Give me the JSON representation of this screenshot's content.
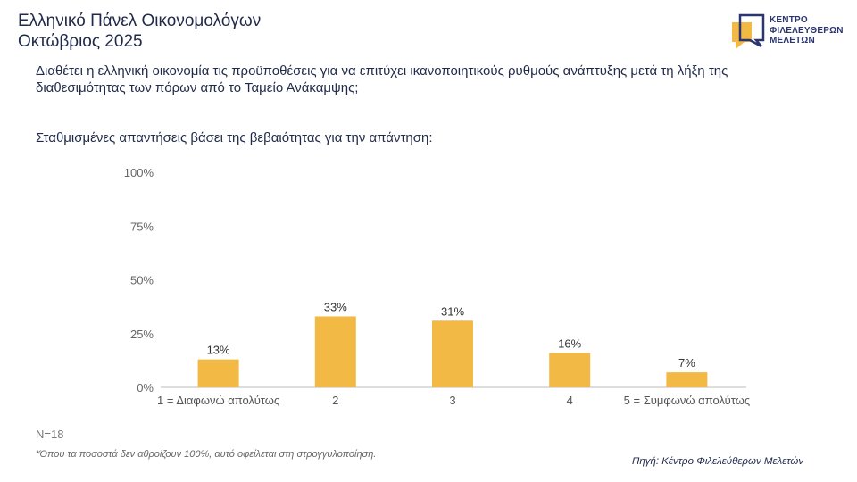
{
  "header": {
    "title_line1": "Ελληνικό Πάνελ Οικονομολόγων",
    "title_line2": "Οκτώβριος 2025"
  },
  "logo": {
    "lines": [
      "ΚΕΝΤΡΟ",
      "ΦΙΛΕΛΕΥΘΕΡΩΝ",
      "ΜΕΛΕΤΩΝ"
    ],
    "accent": "#f2b944",
    "dark": "#2b3570"
  },
  "question": "Διαθέτει η ελληνική οικονομία τις προϋποθέσεις για να επιτύχει ικανοποιητικούς ρυθμούς ανάπτυξης μετά τη λήξη της διαθεσιμότητας των πόρων από το Ταμείο Ανάκαμψης;",
  "subtitle": "Σταθμισμένες απαντήσεις βάσει της βεβαιότητας για την απάντηση:",
  "chart_data": {
    "type": "bar",
    "categories": [
      "1 = Διαφωνώ απολύτως",
      "2",
      "3",
      "4",
      "5 = Συμφωνώ απολύτως"
    ],
    "values": [
      13,
      33,
      31,
      16,
      7
    ],
    "data_labels": [
      "13%",
      "33%",
      "31%",
      "16%",
      "7%"
    ],
    "yticks": [
      "0%",
      "25%",
      "50%",
      "75%",
      "100%"
    ],
    "ylim": [
      0,
      100
    ],
    "bar_color": "#f2b944",
    "grid": false
  },
  "footer": {
    "n": "N=18",
    "note": "*Όπου τα ποσοστά δεν αθροίζουν 100%, αυτό οφείλεται στη στρογγυλοποίηση.",
    "source": "Πηγή: Κέντρο Φιλελεύθερων Μελετών"
  }
}
